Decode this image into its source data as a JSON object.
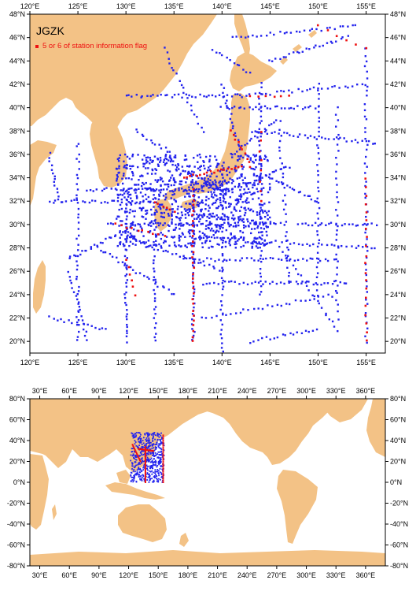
{
  "colors": {
    "land": "#f3c286",
    "ocean": "#ffffff",
    "station": "#2222ee",
    "flagged": "#ee1111",
    "frame": "#000000"
  },
  "regional_map": {
    "title": "JGZK",
    "legend": {
      "marker_color": "#ee1111",
      "label": "5 or 6 of station information flag"
    },
    "lon_range": [
      120,
      157
    ],
    "lat_range": [
      19,
      48
    ],
    "lon_ticks": [
      {
        "value": 120,
        "label": "120°E"
      },
      {
        "value": 125,
        "label": "125°E"
      },
      {
        "value": 130,
        "label": "130°E"
      },
      {
        "value": 135,
        "label": "135°E"
      },
      {
        "value": 140,
        "label": "140°E"
      },
      {
        "value": 145,
        "label": "145°E"
      },
      {
        "value": 150,
        "label": "150°E"
      },
      {
        "value": 155,
        "label": "155°E"
      }
    ],
    "lat_ticks": [
      {
        "value": 20,
        "label": "20°N"
      },
      {
        "value": 22,
        "label": "22°N"
      },
      {
        "value": 24,
        "label": "24°N"
      },
      {
        "value": 26,
        "label": "26°N"
      },
      {
        "value": 28,
        "label": "28°N"
      },
      {
        "value": 30,
        "label": "30°N"
      },
      {
        "value": 32,
        "label": "32°N"
      },
      {
        "value": 34,
        "label": "34°N"
      },
      {
        "value": 36,
        "label": "36°N"
      },
      {
        "value": 38,
        "label": "38°N"
      },
      {
        "value": 40,
        "label": "40°N"
      },
      {
        "value": 42,
        "label": "42°N"
      },
      {
        "value": 44,
        "label": "44°N"
      },
      {
        "value": 46,
        "label": "46°N"
      },
      {
        "value": 48,
        "label": "48°N"
      }
    ]
  },
  "global_map": {
    "lon_range": [
      20,
      380
    ],
    "lat_range": [
      -80,
      80
    ],
    "lon_ticks": [
      {
        "value": 30,
        "label": "30°E"
      },
      {
        "value": 60,
        "label": "60°E"
      },
      {
        "value": 90,
        "label": "90°E"
      },
      {
        "value": 120,
        "label": "120°E"
      },
      {
        "value": 150,
        "label": "150°E"
      },
      {
        "value": 180,
        "label": "180°E"
      },
      {
        "value": 210,
        "label": "210°E"
      },
      {
        "value": 240,
        "label": "240°E"
      },
      {
        "value": 270,
        "label": "270°E"
      },
      {
        "value": 300,
        "label": "300°E"
      },
      {
        "value": 330,
        "label": "330°E"
      },
      {
        "value": 360,
        "label": "360°E"
      }
    ],
    "lat_ticks": [
      {
        "value": -80,
        "label": "-80°N"
      },
      {
        "value": -60,
        "label": "-60°N"
      },
      {
        "value": -40,
        "label": "-40°N"
      },
      {
        "value": -20,
        "label": "-20°N"
      },
      {
        "value": 0,
        "label": "0°N"
      },
      {
        "value": 20,
        "label": "20°N"
      },
      {
        "value": 40,
        "label": "40°N"
      },
      {
        "value": 60,
        "label": "60°N"
      },
      {
        "value": 80,
        "label": "80°N"
      }
    ]
  }
}
